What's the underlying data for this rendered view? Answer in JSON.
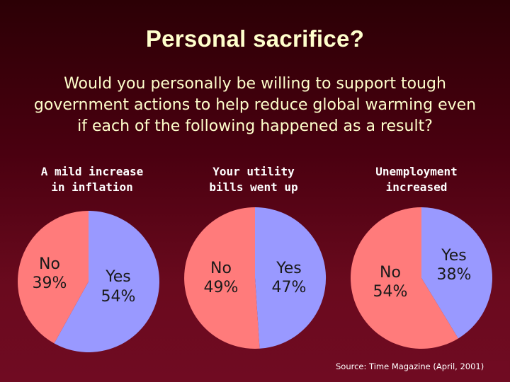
{
  "title": "Personal sacrifice?",
  "question": "Would you personally be willing to support tough government actions to help reduce global warming even if each of the following happened as a result?",
  "source": "Source: Time Magazine (April, 2001)",
  "colors": {
    "yes": "#9999ff",
    "no": "#ff7b7b",
    "title": "#ffffcc",
    "background": "#4a0010"
  },
  "chart_data": [
    {
      "type": "pie",
      "label_lines": [
        "A mild increase",
        "in inflation"
      ],
      "slices": [
        {
          "name": "Yes",
          "value": 54,
          "text": "54%"
        },
        {
          "name": "No",
          "value": 39,
          "text": "39%"
        }
      ]
    },
    {
      "type": "pie",
      "label_lines": [
        "Your utility",
        "bills went up"
      ],
      "slices": [
        {
          "name": "Yes",
          "value": 47,
          "text": "47%"
        },
        {
          "name": "No",
          "value": 49,
          "text": "49%"
        }
      ]
    },
    {
      "type": "pie",
      "label_lines": [
        "Unemployment",
        "increased"
      ],
      "slices": [
        {
          "name": "Yes",
          "value": 38,
          "text": "38%"
        },
        {
          "name": "No",
          "value": 54,
          "text": "54%"
        }
      ]
    }
  ]
}
